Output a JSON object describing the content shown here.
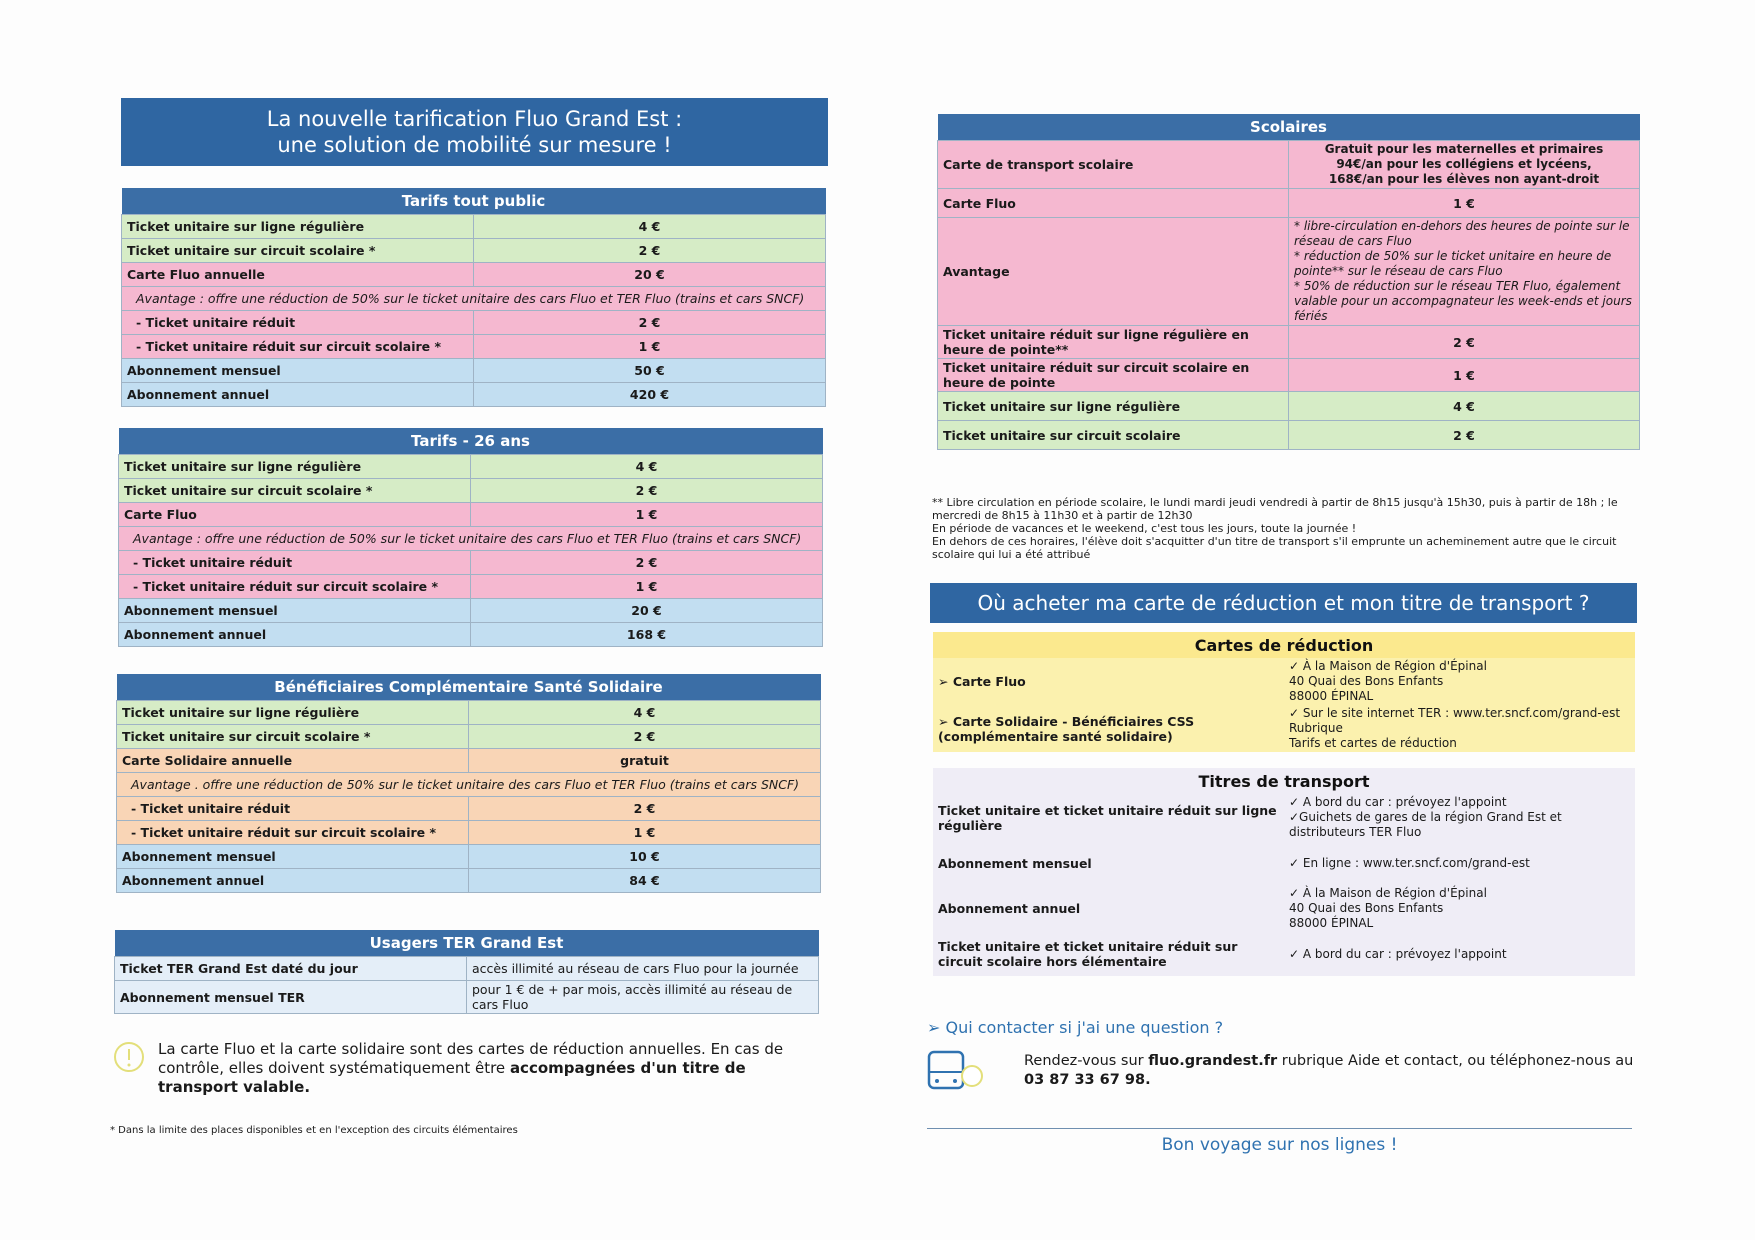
{
  "header": {
    "title": [
      "La nouvelle tarification Fluo Grand Est :",
      "une solution de mobilité sur mesure !"
    ]
  },
  "left_tables": [
    {
      "title": "Tarifs tout public",
      "rows": [
        {
          "label": "Ticket unitaire sur ligne régulière",
          "value": "4 €",
          "color": "#d6ecc6"
        },
        {
          "label": "Ticket unitaire sur circuit scolaire *",
          "value": "2 €",
          "color": "#d6ecc6"
        },
        {
          "label": "Carte Fluo annuelle",
          "value": "20 €",
          "color": "#f5b8d0"
        },
        {
          "note": "Avantage : offre une réduction de 50% sur le ticket unitaire des cars Fluo et TER Fluo (trains et cars SNCF)",
          "color": "#f5b8d0"
        },
        {
          "label": "- Ticket unitaire réduit",
          "value": "2 €",
          "color": "#f5b8d0"
        },
        {
          "label": "- Ticket unitaire réduit sur circuit scolaire *",
          "value": "1 €",
          "color": "#f5b8d0"
        },
        {
          "label": "Abonnement mensuel",
          "value": "50 €",
          "color": "#c2def1"
        },
        {
          "label": "Abonnement annuel",
          "value": "420 €",
          "color": "#c2def1"
        }
      ]
    },
    {
      "title": "Tarifs - 26 ans",
      "rows": [
        {
          "label": "Ticket unitaire sur ligne régulière",
          "value": "4 €",
          "color": "#d6ecc6"
        },
        {
          "label": "Ticket unitaire sur circuit scolaire *",
          "value": "2 €",
          "color": "#d6ecc6"
        },
        {
          "label": "Carte Fluo",
          "value": "1 €",
          "color": "#f5b8d0"
        },
        {
          "note": "Avantage : offre une réduction de 50% sur le ticket unitaire des cars Fluo et TER Fluo (trains et cars SNCF)",
          "color": "#f5b8d0"
        },
        {
          "label": "- Ticket unitaire réduit",
          "value": "2 €",
          "color": "#f5b8d0"
        },
        {
          "label": "- Ticket unitaire réduit sur circuit scolaire *",
          "value": "1 €",
          "color": "#f5b8d0"
        },
        {
          "label": "Abonnement mensuel",
          "value": "20 €",
          "color": "#c2def1"
        },
        {
          "label": "Abonnement annuel",
          "value": "168 €",
          "color": "#c2def1"
        }
      ]
    },
    {
      "title": "Bénéficiaires Complémentaire Santé Solidaire",
      "rows": [
        {
          "label": "Ticket unitaire sur ligne régulière",
          "value": "4 €",
          "color": "#d6ecc6"
        },
        {
          "label": "Ticket unitaire sur circuit scolaire *",
          "value": "2 €",
          "color": "#d6ecc6"
        },
        {
          "label": "Carte Solidaire annuelle",
          "value": "gratuit",
          "color": "#f9d5b6"
        },
        {
          "note": "Avantage . offre une réduction de 50% sur le ticket unitaire des cars Fluo et TER Fluo (trains et cars SNCF)",
          "color": "#f9d5b6"
        },
        {
          "label": "- Ticket unitaire réduit",
          "value": "2 €",
          "color": "#f9d5b6"
        },
        {
          "label": "- Ticket unitaire réduit sur circuit scolaire *",
          "value": "1 €",
          "color": "#f9d5b6"
        },
        {
          "label": "Abonnement mensuel",
          "value": "10 €",
          "color": "#c2def1"
        },
        {
          "label": "Abonnement annuel",
          "value": "84 €",
          "color": "#c2def1"
        }
      ]
    },
    {
      "title": "Usagers TER Grand Est",
      "rows": [
        {
          "label": "Ticket TER Grand Est daté du jour",
          "value": "accès illimité au réseau de cars Fluo pour la journée",
          "color": "#e4eef8"
        },
        {
          "label": "Abonnement mensuel TER",
          "value": "pour 1 € de + par mois, accès illimité au réseau de cars Fluo",
          "color": "#e4eef8"
        }
      ]
    }
  ],
  "note": {
    "text": "La carte Fluo et la carte solidaire sont des cartes de réduction annuelles. En cas de contrôle, elles doivent systématiquement être ",
    "bold": "accompagnées d'un titre de transport valable."
  },
  "footnote": "* Dans la limite des places disponibles et en l'exception des circuits élémentaires",
  "scolaires": {
    "title": "Scolaires",
    "rows": [
      {
        "label": "Carte de transport scolaire",
        "value": [
          "Gratuit pour les maternelles et primaires",
          "94€/an pour les collégiens et lycéens,",
          "168€/an pour les élèves non ayant-droit"
        ],
        "color": "#f5b8d0"
      },
      {
        "label": "Carte Fluo",
        "value": "1 €",
        "color": "#f5b8d0"
      },
      {
        "label": "Avantage",
        "value": [
          "* libre-circulation en-dehors des heures de pointe sur le réseau de cars Fluo",
          "* réduction de 50% sur le ticket unitaire en heure de pointe** sur le réseau de cars Fluo",
          "* 50% de réduction sur le réseau TER Fluo, également valable pour un accompagnateur les week-ends et jours fériés"
        ],
        "color": "#f5b8d0"
      },
      {
        "label": "Ticket unitaire réduit sur ligne régulière en heure de pointe**",
        "value": "2 €",
        "color": "#f5b8d0"
      },
      {
        "label": "Ticket unitaire réduit sur circuit scolaire en heure de pointe",
        "value": "1 €",
        "color": "#f5b8d0"
      },
      {
        "label": "Ticket unitaire sur ligne régulière",
        "value": "4 €",
        "color": "#d6ecc6"
      },
      {
        "label": "Ticket unitaire sur circuit scolaire",
        "value": "2 €",
        "color": "#d6ecc6"
      }
    ]
  },
  "scolaires_footnote": [
    "** Libre circulation en période scolaire, le lundi mardi jeudi vendredi à partir de 8h15 jusqu'à 15h30, puis à partir de 18h ; le mercredi de 8h15 à 11h30 et à partir de 12h30",
    "En période de vacances et le weekend, c'est tous les jours, toute la journée !",
    "En dehors de ces horaires, l'élève doit s'acquitter d'un titre de transport s'il emprunte un acheminement autre que le circuit scolaire qui lui a été attribué"
  ],
  "where": {
    "title": "Où acheter ma carte de réduction et mon titre de transport ?",
    "reduction": {
      "title": "Cartes de réduction",
      "rows": [
        {
          "label": "➢ Carte Fluo",
          "value": [
            "✓ À la Maison de Région d'Épinal",
            "40 Quai des Bons Enfants",
            "88000 ÉPINAL"
          ],
          "color": "#fbf1ae"
        },
        {
          "label": "➢ Carte Solidaire - Bénéficiaires CSS (complémentaire santé solidaire)",
          "value": [
            "✓ Sur le site internet TER : www.ter.sncf.com/grand-est Rubrique",
            "Tarifs et cartes de réduction"
          ],
          "color": "#fbf1ae"
        }
      ]
    },
    "titres": {
      "title": "Titres de transport",
      "rows": [
        {
          "label": "Ticket unitaire et ticket unitaire réduit sur ligne régulière",
          "value": [
            "✓ A bord du car : prévoyez l'appoint",
            "✓Guichets de gares de la région Grand Est et distributeurs TER Fluo"
          ],
          "color": "#efedf6"
        },
        {
          "label": "Abonnement mensuel",
          "value": [
            "✓ En ligne : www.ter.sncf.com/grand-est"
          ],
          "color": "#efedf6"
        },
        {
          "label": "Abonnement annuel",
          "value": [
            "✓ À la Maison de Région d'Épinal",
            "40 Quai des Bons Enfants",
            "88000 ÉPINAL"
          ],
          "color": "#efedf6"
        },
        {
          "label": "Ticket unitaire et ticket unitaire réduit sur circuit scolaire hors élémentaire",
          "value": [
            "✓ A bord du car : prévoyez l'appoint"
          ],
          "color": "#efedf6"
        }
      ]
    }
  },
  "contact": {
    "heading": "➢ Qui contacter si j'ai une question ?",
    "text": "Rendez-vous sur ",
    "site": "fluo.grandest.fr",
    "text2": " rubrique Aide et contact, ou téléphonez-nous au ",
    "phone": "03 87 33 67 98."
  },
  "closing": "Bon voyage sur nos lignes !"
}
